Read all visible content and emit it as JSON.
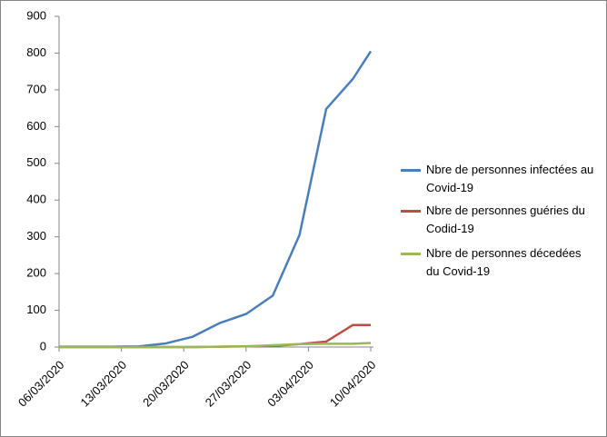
{
  "chart_data": {
    "type": "line",
    "x": [
      "06/03/2020",
      "09/03/2020",
      "12/03/2020",
      "15/03/2020",
      "18/03/2020",
      "21/03/2020",
      "24/03/2020",
      "27/03/2020",
      "30/03/2020",
      "02/04/2020",
      "05/04/2020",
      "08/04/2020",
      "10/04/2020"
    ],
    "series": [
      {
        "name": "Nbre de personnes infectées au Covid-19",
        "color": "#4a7ebb",
        "values": [
          1,
          1,
          1,
          2,
          10,
          28,
          65,
          90,
          140,
          305,
          648,
          730,
          805
        ]
      },
      {
        "name": "Nbre de personnes guéries du Codid-19",
        "color": "#be4b48",
        "values": [
          0,
          0,
          0,
          0,
          0,
          0,
          1,
          2,
          3,
          8,
          15,
          60,
          60
        ]
      },
      {
        "name": "Nbre de personnes décedées du Covid-19",
        "color": "#98b954",
        "values": [
          0,
          0,
          0,
          0,
          0,
          0,
          1,
          2,
          5,
          8,
          9,
          9,
          11
        ]
      }
    ],
    "xlim": [
      "06/03/2020",
      "10/04/2020"
    ],
    "xticks": [
      "06/03/2020",
      "13/03/2020",
      "20/03/2020",
      "27/03/2020",
      "03/04/2020",
      "10/04/2020"
    ],
    "ylim": [
      0,
      900
    ],
    "yticks": [
      0,
      100,
      200,
      300,
      400,
      500,
      600,
      700,
      800,
      900
    ],
    "grid": false,
    "legend": "right"
  }
}
